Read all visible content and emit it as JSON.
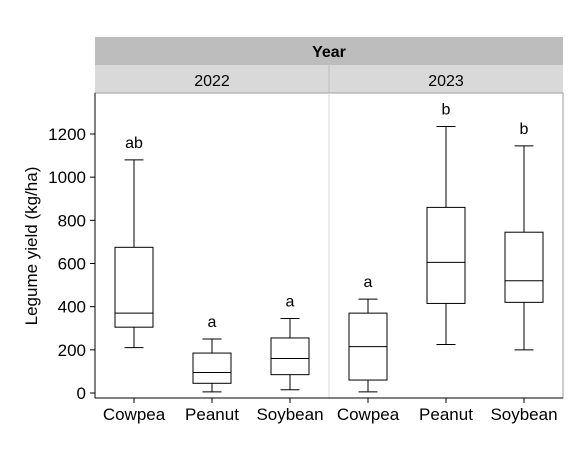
{
  "chart_data": {
    "type": "boxplot",
    "facet_title": "Year",
    "ylabel": "Legume yield (kg/ha)",
    "ylim": [
      0,
      1400
    ],
    "yticks": [
      0,
      200,
      400,
      600,
      800,
      1000,
      1200
    ],
    "grid": false,
    "colors": {
      "strip_title_bg": "#bdbdbd",
      "strip_panel_bg": "#d9d9d9",
      "panel_border": "#9e9e9e",
      "box": "#000000"
    },
    "panels": [
      {
        "label": "2022",
        "boxes": [
          {
            "category": "Cowpea",
            "min": 210,
            "q1": 305,
            "median": 370,
            "q3": 675,
            "max": 1080,
            "letter": "ab"
          },
          {
            "category": "Peanut",
            "min": 5,
            "q1": 45,
            "median": 95,
            "q3": 185,
            "max": 250,
            "letter": "a"
          },
          {
            "category": "Soybean",
            "min": 15,
            "q1": 85,
            "median": 160,
            "q3": 255,
            "max": 345,
            "letter": "a"
          }
        ]
      },
      {
        "label": "2023",
        "boxes": [
          {
            "category": "Cowpea",
            "min": 5,
            "q1": 60,
            "median": 215,
            "q3": 370,
            "max": 435,
            "letter": "a"
          },
          {
            "category": "Peanut",
            "min": 225,
            "q1": 415,
            "median": 605,
            "q3": 860,
            "max": 1235,
            "letter": "b"
          },
          {
            "category": "Soybean",
            "min": 200,
            "q1": 420,
            "median": 520,
            "q3": 745,
            "max": 1145,
            "letter": "b"
          }
        ]
      }
    ]
  }
}
